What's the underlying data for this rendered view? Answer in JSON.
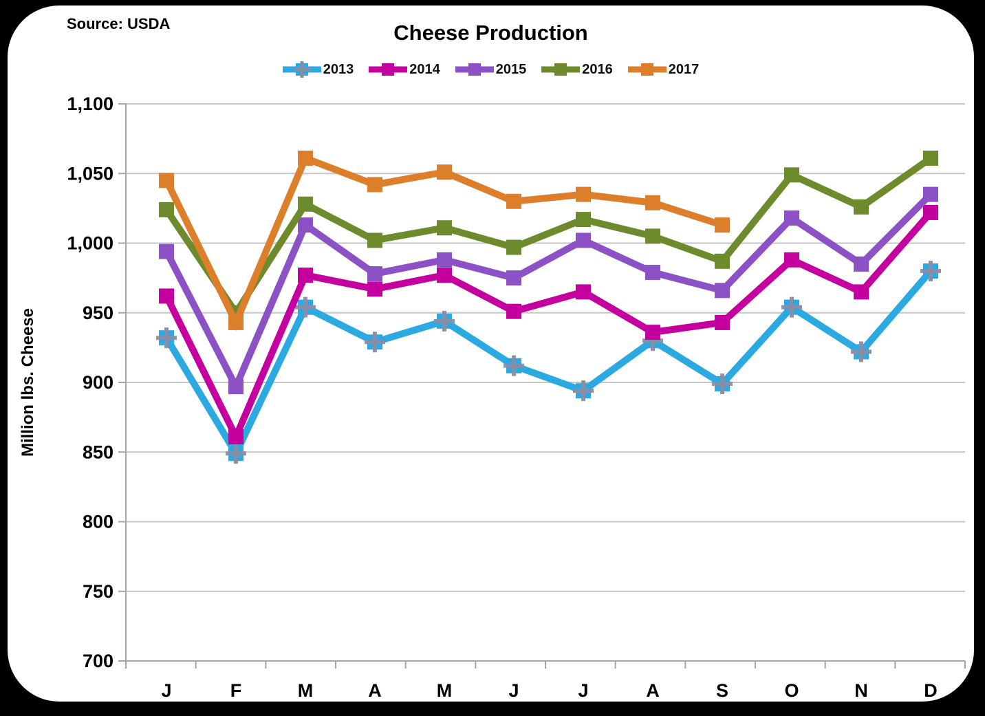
{
  "source_label": "Source: USDA",
  "title": "Cheese Production",
  "y_axis_title": "Million lbs. Cheese",
  "colors": {
    "background": "#000000",
    "panel": "#FFFFFF",
    "gridline": "#C6C6C6",
    "axis_line": "#A6A6A6",
    "text": "#000000",
    "marker_plus": "#8A8CA6"
  },
  "y_tick_labels": [
    "1,100",
    "1,050",
    "1,000",
    "950",
    "900",
    "850",
    "800",
    "750",
    "700"
  ],
  "chart_data": {
    "type": "line",
    "title": "Cheese Production",
    "xlabel": "",
    "ylabel": "Million lbs. Cheese",
    "categories": [
      "J",
      "F",
      "M",
      "A",
      "M",
      "J",
      "J",
      "A",
      "S",
      "O",
      "N",
      "D"
    ],
    "ylim": [
      700,
      1100
    ],
    "ytick_step": 50,
    "grid": true,
    "legend_position": "top",
    "series": [
      {
        "name": "2013",
        "color": "#2BA9E0",
        "marker": "square-plus",
        "values": [
          932,
          849,
          954,
          929,
          944,
          912,
          894,
          930,
          899,
          954,
          922,
          980
        ]
      },
      {
        "name": "2014",
        "color": "#C4009E",
        "marker": "square",
        "values": [
          962,
          861,
          977,
          967,
          977,
          951,
          965,
          936,
          943,
          988,
          965,
          1022
        ]
      },
      {
        "name": "2015",
        "color": "#8C52C5",
        "marker": "square",
        "values": [
          994,
          897,
          1013,
          978,
          988,
          975,
          1002,
          979,
          966,
          1018,
          985,
          1035
        ]
      },
      {
        "name": "2016",
        "color": "#6D8B2C",
        "marker": "square",
        "values": [
          1024,
          950,
          1028,
          1002,
          1011,
          997,
          1017,
          1005,
          987,
          1049,
          1026,
          1061
        ]
      },
      {
        "name": "2017",
        "color": "#DD7E2B",
        "marker": "square",
        "values": [
          1045,
          943,
          1061,
          1042,
          1051,
          1030,
          1035,
          1029,
          1013
        ]
      }
    ]
  }
}
